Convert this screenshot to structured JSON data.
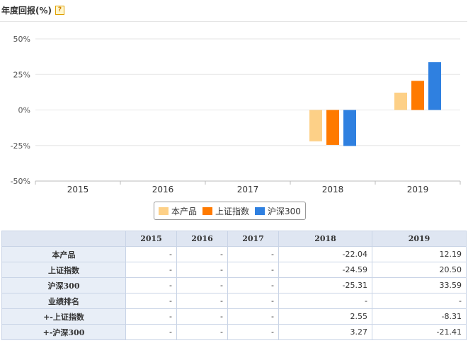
{
  "header": {
    "title": "年度回报(%)",
    "help_icon": "question-icon"
  },
  "colors": {
    "product": "#fdd087",
    "shanghai_index": "#ff7a00",
    "csi300": "#2f80e0"
  },
  "chart_data": {
    "type": "bar",
    "categories": [
      "2015",
      "2016",
      "2017",
      "2018",
      "2019"
    ],
    "series": [
      {
        "name": "本产品",
        "values": [
          null,
          null,
          null,
          -22.04,
          12.19
        ]
      },
      {
        "name": "上证指数",
        "values": [
          null,
          null,
          null,
          -24.59,
          20.5
        ]
      },
      {
        "name": "沪深300",
        "values": [
          null,
          null,
          null,
          -25.31,
          33.59
        ]
      }
    ],
    "ylim": [
      -50,
      50
    ],
    "yticks": [
      50,
      25,
      0,
      -25,
      -50
    ],
    "ytick_labels": [
      "50%",
      "25%",
      "0%",
      "-25%",
      "-50%"
    ],
    "grid": true,
    "legend_position": "bottom-center"
  },
  "table": {
    "columns": [
      "",
      "2015",
      "2016",
      "2017",
      "2018",
      "2019"
    ],
    "rows": [
      {
        "label": "本产品",
        "cells": [
          "-",
          "-",
          "-",
          "-22.04",
          "12.19"
        ]
      },
      {
        "label": "上证指数",
        "cells": [
          "-",
          "-",
          "-",
          "-24.59",
          "20.50"
        ]
      },
      {
        "label": "沪深300",
        "cells": [
          "-",
          "-",
          "-",
          "-25.31",
          "33.59"
        ]
      },
      {
        "label": "业绩排名",
        "cells": [
          "-",
          "-",
          "-",
          "-",
          "-"
        ]
      },
      {
        "label": "+-上证指数",
        "cells": [
          "-",
          "-",
          "-",
          "2.55",
          "-8.31"
        ]
      },
      {
        "label": "+-沪深300",
        "cells": [
          "-",
          "-",
          "-",
          "3.27",
          "-21.41"
        ]
      }
    ]
  }
}
